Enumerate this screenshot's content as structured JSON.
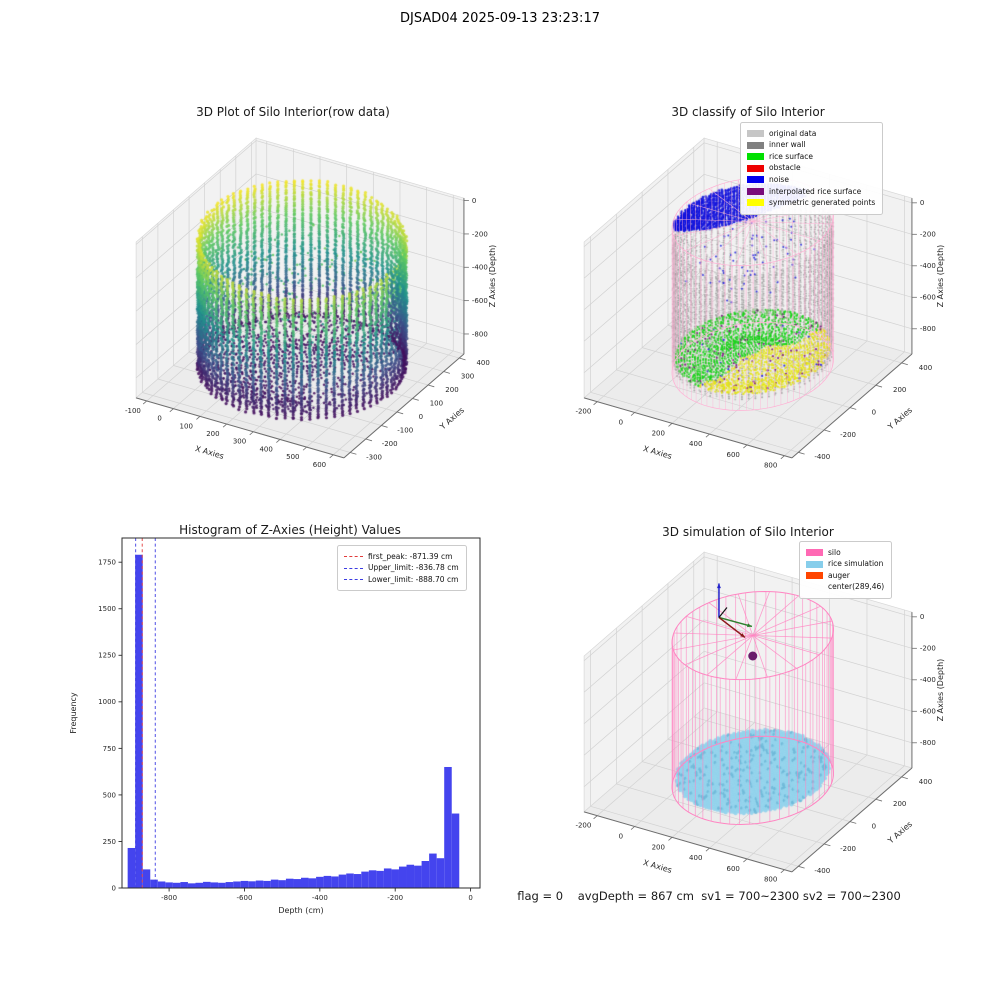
{
  "suptitle": "DJSAD04 2025-09-13 23:23:17",
  "footer": "flag = 0    avgDepth = 867 cm  sv1 = 700~2300 sv2 = 700~2300",
  "chart_data": [
    {
      "id": "raw3d",
      "type": "scatter",
      "projection": "3d",
      "title": "3D Plot of Silo Interior(row data)",
      "xlabel": "X Axies",
      "ylabel": "Y Axies",
      "zlabel": "Z Axies (Depth)",
      "xlim": [
        -140,
        640
      ],
      "ylim": [
        -340,
        430
      ],
      "zlim": [
        -920,
        15
      ],
      "xticks": [
        -100,
        0,
        100,
        200,
        300,
        400,
        500,
        600
      ],
      "yticks": [
        -300,
        -200,
        -100,
        0,
        100,
        200,
        300,
        400
      ],
      "zticks": [
        0,
        -200,
        -400,
        -600,
        -800
      ],
      "colormap": "viridis",
      "cylinder": {
        "cx": 255,
        "cy": 50,
        "radius": 335,
        "z_top": -55,
        "z_bottom": -870
      }
    },
    {
      "id": "classify3d",
      "type": "scatter",
      "projection": "3d",
      "title": "3D classify of Silo Interior",
      "xlabel": "X Axies",
      "ylabel": "Y Axies",
      "zlabel": "Z Axies (Depth)",
      "xlim": [
        -270,
        840
      ],
      "ylim": [
        -450,
        480
      ],
      "zlim": [
        -960,
        30
      ],
      "xticks": [
        -200,
        0,
        200,
        400,
        600,
        800
      ],
      "yticks": [
        -400,
        -200,
        0,
        200,
        400
      ],
      "zticks": [
        0,
        -200,
        -400,
        -600,
        -800
      ],
      "legend": [
        {
          "label": "original data",
          "color": "#c6c6c6",
          "type": "patch"
        },
        {
          "label": "inner wall",
          "color": "#808080",
          "type": "patch"
        },
        {
          "label": "rice surface",
          "color": "#00e000",
          "type": "patch"
        },
        {
          "label": "obstacle",
          "color": "#ee0000",
          "type": "patch"
        },
        {
          "label": "noise",
          "color": "#0000ee",
          "type": "patch"
        },
        {
          "label": "interpolated rice surface",
          "color": "#7a0c7a",
          "type": "patch"
        },
        {
          "label": "symmetric generated points",
          "color": "#ffff00",
          "type": "patch"
        }
      ],
      "silo": {
        "cx": 289,
        "cy": 46,
        "radius": 355,
        "z_top": 0,
        "z_bottom": -920
      },
      "wire_color": "#ffb0d4",
      "surface_z": -850
    },
    {
      "id": "histogram",
      "type": "bar",
      "title": "Histogram of Z-Axies (Height) Values",
      "xlabel": "Depth (cm)",
      "ylabel": "Frequency",
      "xlim": [
        -925,
        25
      ],
      "ylim": [
        0,
        1880
      ],
      "xticks": [
        -800,
        -600,
        -400,
        -200,
        0
      ],
      "yticks": [
        0,
        250,
        500,
        750,
        1000,
        1250,
        1500,
        1750
      ],
      "bar_color": "#4444ee",
      "bin_start": -910,
      "bin_width": 20,
      "values": [
        215,
        1790,
        100,
        45,
        35,
        30,
        28,
        32,
        25,
        28,
        33,
        30,
        28,
        32,
        35,
        38,
        36,
        40,
        38,
        45,
        42,
        50,
        48,
        55,
        52,
        60,
        65,
        62,
        72,
        78,
        75,
        88,
        95,
        92,
        105,
        100,
        115,
        125,
        120,
        145,
        185,
        160,
        650,
        400
      ],
      "vlines": [
        {
          "x": -871.39,
          "color": "#e23b3b",
          "label": "first_peak: -871.39 cm",
          "type": "dline"
        },
        {
          "x": -836.78,
          "color": "#3b3be2",
          "label": "Upper_limit: -836.78 cm",
          "type": "dline"
        },
        {
          "x": -888.7,
          "color": "#3b3be2",
          "label": "Lower_limit: -888.70 cm",
          "type": "dline"
        }
      ]
    },
    {
      "id": "simulation3d",
      "type": "scatter",
      "projection": "3d",
      "title": "3D simulation of Silo Interior",
      "xlabel": "X Axies",
      "ylabel": "Y Axies",
      "zlabel": "Z Axies (Depth)",
      "xlim": [
        -270,
        840
      ],
      "ylim": [
        -450,
        480
      ],
      "zlim": [
        -960,
        30
      ],
      "xticks": [
        -200,
        0,
        200,
        400,
        600,
        800
      ],
      "yticks": [
        -400,
        -200,
        0,
        200,
        400
      ],
      "zticks": [
        0,
        -200,
        -400,
        -600,
        -800
      ],
      "legend": [
        {
          "label": "silo",
          "color": "#ff69b4",
          "type": "patch"
        },
        {
          "label": "rice simulation",
          "color": "#87ceeb",
          "type": "patch"
        },
        {
          "label": "auger",
          "color": "#ff4500",
          "type": "patch"
        },
        {
          "label": "center(289,46)",
          "color": "",
          "type": "none"
        }
      ],
      "silo": {
        "cx": 289,
        "cy": 46,
        "radius": 355,
        "z_top": 0,
        "z_bottom": -920
      },
      "wire_color": "#ff85c2",
      "rice_z": -865,
      "rice_color": "#92d3ec",
      "center_marker": {
        "x": 289,
        "y": 46,
        "z": -130,
        "color": "#6a1b6a"
      }
    }
  ]
}
